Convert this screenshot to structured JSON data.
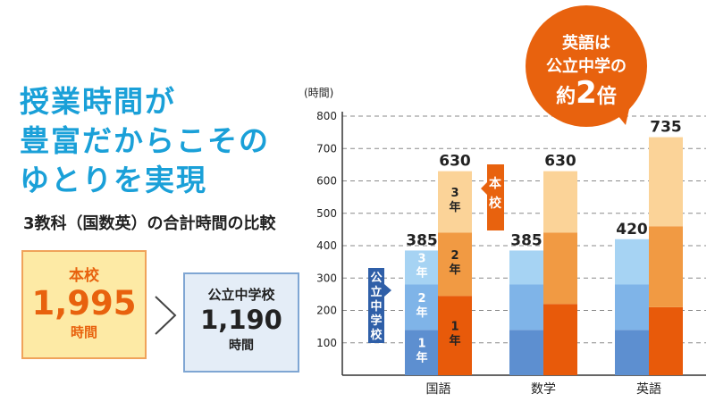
{
  "headline": [
    "授業時間が",
    "豊富だからこその",
    "ゆとりを実現"
  ],
  "subtitle": "3教科（国数英）の合計時間の比較",
  "main_box": {
    "label": "本校",
    "value": "1,995",
    "unit": "時間"
  },
  "public_box": {
    "label": "公立中学校",
    "value": "1,190",
    "unit": "時間"
  },
  "comparison_symbol": ">",
  "callout": {
    "line1": "英語は",
    "line2": "公立中学の",
    "line3a": "約",
    "line3b": "2",
    "line3c": "倍"
  },
  "legend_tags": {
    "honkou": "本校",
    "public": "公立中学校"
  },
  "colors": {
    "accent_blue": "#1aa0d8",
    "accent_orange": "#e8620e",
    "public_1": "#5d8fd0",
    "public_2": "#7fb4e8",
    "public_3": "#a6d3f3",
    "honkou_1": "#e85a0a",
    "honkou_2": "#f19a43",
    "honkou_3": "#fbd398"
  },
  "chart_data": {
    "type": "bar",
    "stacked": true,
    "ylabel": "(時間)",
    "ylim": [
      0,
      800
    ],
    "yticks": [
      100,
      200,
      300,
      400,
      500,
      600,
      700,
      800
    ],
    "grid": true,
    "categories": [
      "国語",
      "数学",
      "英語"
    ],
    "groups": [
      {
        "name": "公立中学校",
        "segments": [
          [
            140,
            140,
            105
          ],
          [
            140,
            140,
            105
          ],
          [
            140,
            140,
            140
          ]
        ],
        "totals": [
          385,
          385,
          420
        ]
      },
      {
        "name": "本校",
        "segments": [
          [
            245,
            195,
            190
          ],
          [
            220,
            220,
            190
          ],
          [
            210,
            250,
            275
          ]
        ],
        "totals": [
          630,
          630,
          735
        ]
      }
    ],
    "grade_labels": {
      "g1": "1年",
      "g2": "2年",
      "g3": "3年"
    }
  }
}
